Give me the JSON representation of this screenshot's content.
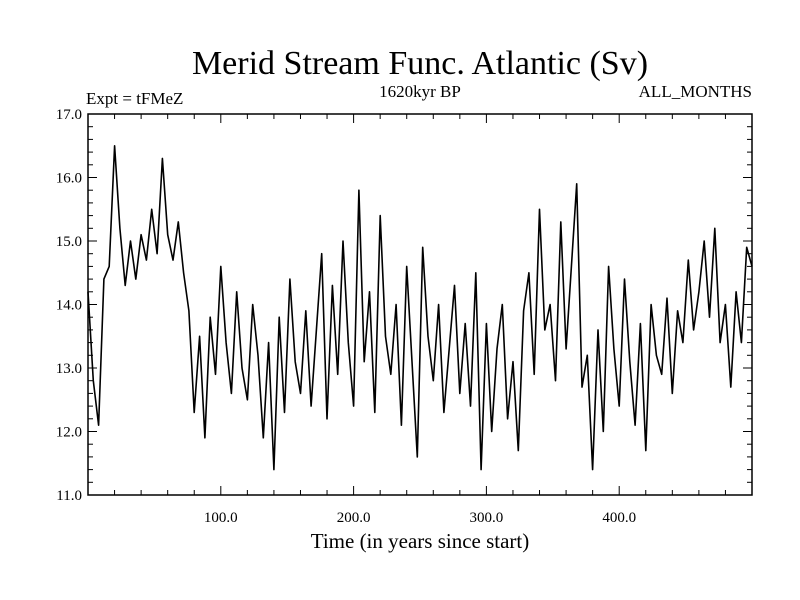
{
  "chart_data": {
    "type": "line",
    "title": "Merid Stream Func. Atlantic (Sv)",
    "subtitle_left": "Expt = tFMeZ",
    "subtitle_center": "1620kyr BP",
    "subtitle_right": "ALL_MONTHS",
    "xlabel": "Time (in years since start)",
    "ylabel": "",
    "xlim": [
      0,
      500
    ],
    "ylim": [
      11.0,
      17.0
    ],
    "xticks": [
      100,
      200,
      300,
      400
    ],
    "xtick_labels": [
      "100.0",
      "200.0",
      "300.0",
      "400.0"
    ],
    "yticks": [
      11,
      12,
      13,
      14,
      15,
      16,
      17
    ],
    "ytick_labels": [
      "11.0",
      "12.0",
      "13.0",
      "14.0",
      "15.0",
      "16.0",
      "17.0"
    ],
    "grid": false,
    "series": [
      {
        "name": "Merid Stream Func. Atlantic",
        "x": [
          0,
          4,
          8,
          12,
          16,
          20,
          24,
          28,
          32,
          36,
          40,
          44,
          48,
          52,
          56,
          60,
          64,
          68,
          72,
          76,
          80,
          84,
          88,
          92,
          96,
          100,
          104,
          108,
          112,
          116,
          120,
          124,
          128,
          132,
          136,
          140,
          144,
          148,
          152,
          156,
          160,
          164,
          168,
          172,
          176,
          180,
          184,
          188,
          192,
          196,
          200,
          204,
          208,
          212,
          216,
          220,
          224,
          228,
          232,
          236,
          240,
          244,
          248,
          252,
          256,
          260,
          264,
          268,
          272,
          276,
          280,
          284,
          288,
          292,
          296,
          300,
          304,
          308,
          312,
          316,
          320,
          324,
          328,
          332,
          336,
          340,
          344,
          348,
          352,
          356,
          360,
          364,
          368,
          372,
          376,
          380,
          384,
          388,
          392,
          396,
          400,
          404,
          408,
          412,
          416,
          420,
          424,
          428,
          432,
          436,
          440,
          444,
          448,
          452,
          456,
          460,
          464,
          468,
          472,
          476,
          480,
          484,
          488,
          492,
          496,
          500
        ],
        "values": [
          14.2,
          12.8,
          12.1,
          14.4,
          14.6,
          16.5,
          15.2,
          14.3,
          15.0,
          14.4,
          15.1,
          14.7,
          15.5,
          14.8,
          16.3,
          15.1,
          14.7,
          15.3,
          14.5,
          13.9,
          12.3,
          13.5,
          11.9,
          13.8,
          12.9,
          14.6,
          13.4,
          12.6,
          14.2,
          13.0,
          12.5,
          14.0,
          13.2,
          11.9,
          13.4,
          11.4,
          13.8,
          12.3,
          14.4,
          13.1,
          12.6,
          13.9,
          12.4,
          13.6,
          14.8,
          12.2,
          14.3,
          12.9,
          15.0,
          13.4,
          12.4,
          15.8,
          13.1,
          14.2,
          12.3,
          15.4,
          13.5,
          12.9,
          14.0,
          12.1,
          14.6,
          13.1,
          11.6,
          14.9,
          13.5,
          12.8,
          14.0,
          12.3,
          13.3,
          14.3,
          12.6,
          13.7,
          12.4,
          14.5,
          11.4,
          13.7,
          12.0,
          13.3,
          14.0,
          12.2,
          13.1,
          11.7,
          13.9,
          14.5,
          12.9,
          15.5,
          13.6,
          14.0,
          12.8,
          15.3,
          13.3,
          14.6,
          15.9,
          12.7,
          13.2,
          11.4,
          13.6,
          12.0,
          14.6,
          13.3,
          12.4,
          14.4,
          13.1,
          12.1,
          13.7,
          11.7,
          14.0,
          13.2,
          12.9,
          14.1,
          12.6,
          13.9,
          13.4,
          14.7,
          13.6,
          14.2,
          15.0,
          13.8,
          15.2,
          13.4,
          14.0,
          12.7,
          14.2,
          13.4,
          14.9,
          14.6
        ]
      }
    ]
  }
}
